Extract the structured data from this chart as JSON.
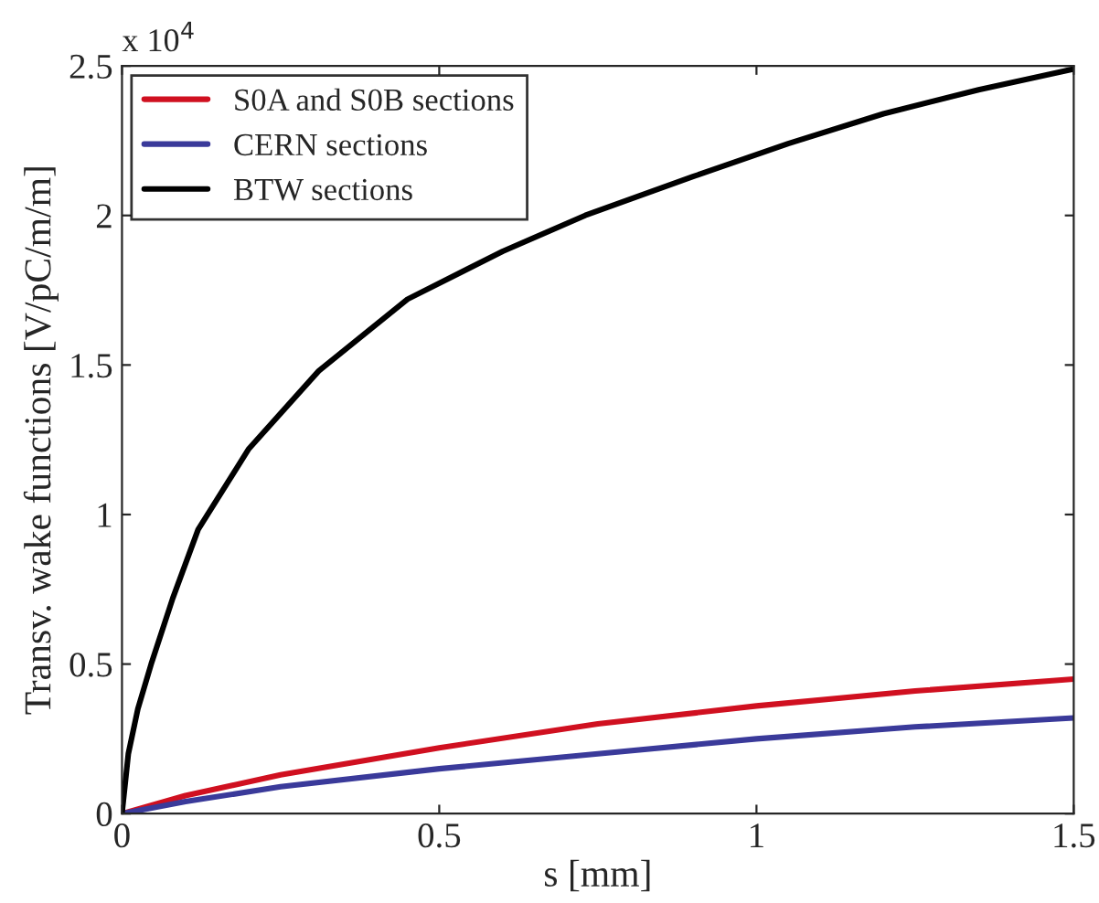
{
  "chart_data": {
    "type": "line",
    "xlabel": "s [mm]",
    "ylabel": "Transv. wake functions [V/pC/m/m]",
    "annotations": [
      "x 10$^{4}$"
    ],
    "xlim": [
      0,
      1.5
    ],
    "xticks": [
      0,
      0.5,
      1,
      1.5
    ],
    "ylim": [
      0,
      2.5
    ],
    "yticks": [
      0,
      0.5,
      1,
      1.5,
      2,
      2.5
    ],
    "grid": false,
    "legend": "top left",
    "marker": "none",
    "line_style": "solid",
    "series": [
      {
        "name": "S0A and S0B sections",
        "color": "#d01020",
        "x": [
          0,
          0.1,
          0.25,
          0.5,
          0.75,
          1.0,
          1.25,
          1.5
        ],
        "values": [
          0,
          0.06,
          0.13,
          0.22,
          0.3,
          0.36,
          0.41,
          0.45
        ]
      },
      {
        "name": "CERN sections",
        "color": "#3a3a9a",
        "x": [
          0,
          0.1,
          0.25,
          0.5,
          0.75,
          1.0,
          1.25,
          1.5
        ],
        "values": [
          0,
          0.04,
          0.09,
          0.15,
          0.2,
          0.25,
          0.29,
          0.32
        ]
      },
      {
        "name": "BTW sections",
        "color": "#000000",
        "x": [
          0,
          0.01,
          0.025,
          0.046,
          0.08,
          0.12,
          0.2,
          0.31,
          0.45,
          0.6,
          0.73,
          0.9,
          1.05,
          1.2,
          1.35,
          1.5
        ],
        "values": [
          0,
          0.2,
          0.35,
          0.5,
          0.72,
          0.95,
          1.22,
          1.48,
          1.72,
          1.88,
          2.0,
          2.13,
          2.24,
          2.34,
          2.42,
          2.49
        ]
      }
    ]
  }
}
